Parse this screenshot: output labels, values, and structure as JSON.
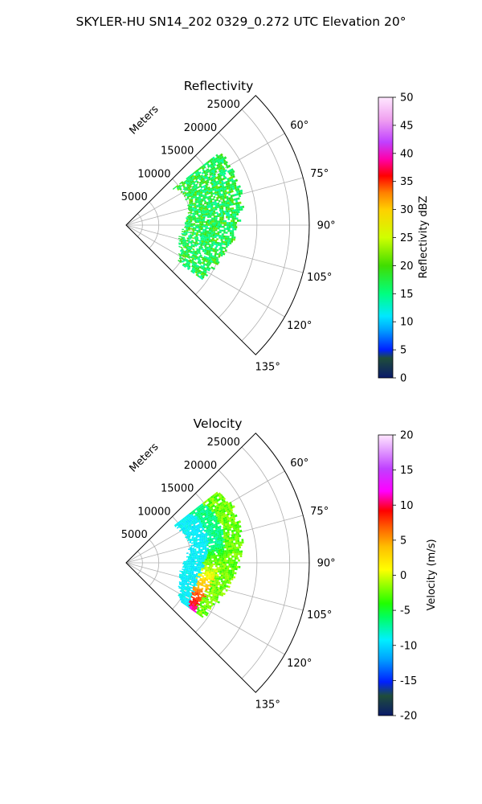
{
  "suptitle": "SKYLER-HU  SN14_202  0329_0.272 UTC Elevation 20°",
  "colors": {
    "background": "#ffffff",
    "grid": "#b0b0b0",
    "axis": "#000000"
  },
  "chart_data": [
    {
      "type": "polar_sector_heatmap",
      "title": "Reflectivity",
      "range_label": "Meters",
      "theta_ticks": [
        "60°",
        "75°",
        "90°",
        "105°",
        "120°",
        "135°"
      ],
      "r_ticks": [
        "5000",
        "10000",
        "15000",
        "20000",
        "25000"
      ],
      "theta_range_deg": [
        45,
        135
      ],
      "r_range_m": [
        0,
        28000
      ],
      "grid": true,
      "data_extent": {
        "r_start_m": 9000,
        "r_end_m": 17000,
        "theta_start_deg": 52,
        "theta_end_deg": 125
      },
      "field_description": "mostly 13-18 dBZ (green), scattered",
      "colorbar": {
        "label": "Reflectivity dBZ",
        "min": 0,
        "max": 50,
        "ticks": [
          "0",
          "5",
          "10",
          "15",
          "20",
          "25",
          "30",
          "35",
          "40",
          "45",
          "50"
        ]
      }
    },
    {
      "type": "polar_sector_heatmap",
      "title": "Velocity",
      "range_label": "Meters",
      "theta_ticks": [
        "60°",
        "75°",
        "90°",
        "105°",
        "120°",
        "135°"
      ],
      "r_ticks": [
        "5000",
        "10000",
        "15000",
        "20000",
        "25000"
      ],
      "theta_range_deg": [
        45,
        135
      ],
      "r_range_m": [
        0,
        28000
      ],
      "grid": true,
      "data_extent": {
        "r_start_m": 9000,
        "r_end_m": 17000,
        "theta_start_deg": 52,
        "theta_end_deg": 125
      },
      "field_description": "band from about -12 m/s (cyan, near) through 8-15 m/s (red/magenta) to -5 m/s (green, far)",
      "colorbar": {
        "label": "Velocity (m/s)",
        "min": -20,
        "max": 20,
        "ticks": [
          "-20",
          "-15",
          "-10",
          "-5",
          "0",
          "5",
          "10",
          "15",
          "20"
        ]
      }
    }
  ]
}
